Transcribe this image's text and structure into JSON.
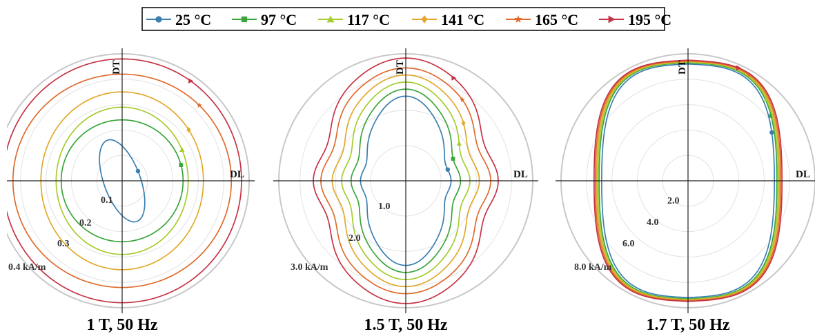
{
  "chart_data": {
    "type": "polar-line",
    "legend": {
      "placement": "top-center",
      "entries": [
        {
          "name": "25 °C",
          "color": "#3b7fb0",
          "marker": "circle"
        },
        {
          "name": "97 °C",
          "color": "#3aa53a",
          "marker": "square"
        },
        {
          "name": "117 °C",
          "color": "#a6cc2e",
          "marker": "triangle-up"
        },
        {
          "name": "141 °C",
          "color": "#e3a82b",
          "marker": "diamond"
        },
        {
          "name": "165 °C",
          "color": "#e06a2c",
          "marker": "star"
        },
        {
          "name": "195 °C",
          "color": "#c63345",
          "marker": "triangle-right"
        }
      ]
    },
    "panels": [
      {
        "title": "1 T, 50 Hz",
        "axis_labels": {
          "vertical": "DT",
          "horizontal": "DL"
        },
        "rmax": 0.5,
        "grid_rings": [
          0.1,
          0.2,
          0.3,
          0.4
        ],
        "tick_labels": [
          {
            "value": 0.1,
            "text": "0.1"
          },
          {
            "value": 0.2,
            "text": "0.2"
          },
          {
            "value": 0.3,
            "text": "0.3"
          },
          {
            "value": 0.4,
            "text": "0.4 kA/m"
          }
        ],
        "series": [
          {
            "a": 0.072,
            "b": 0.17,
            "tilt": 20,
            "shape": 0,
            "marker_angle": 5
          },
          {
            "a": 0.24,
            "b": 0.24,
            "tilt": 0,
            "shape": 0,
            "marker_angle": 15
          },
          {
            "a": 0.26,
            "b": 0.29,
            "tilt": 0,
            "shape": 0,
            "marker_angle": 25
          },
          {
            "a": 0.32,
            "b": 0.35,
            "tilt": 0,
            "shape": 0,
            "marker_angle": 35
          },
          {
            "a": 0.43,
            "b": 0.42,
            "tilt": 0,
            "shape": 0,
            "marker_angle": 45
          },
          {
            "a": 0.47,
            "b": 0.48,
            "tilt": 0,
            "shape": 0,
            "marker_angle": 55
          }
        ]
      },
      {
        "title": "1.5 T, 50 Hz",
        "axis_labels": {
          "vertical": "DT",
          "horizontal": "DL"
        },
        "rmax": 3.6,
        "grid_rings": [
          1.0,
          2.0,
          3.0
        ],
        "tick_labels": [
          {
            "value": 1.0,
            "text": "1.0"
          },
          {
            "value": 2.0,
            "text": "2.0"
          },
          {
            "value": 3.0,
            "text": "3.0 kA/m"
          }
        ],
        "series": [
          {
            "a": 1.2,
            "b": 2.4,
            "tilt": 0,
            "shape": 1,
            "marker_angle": 15
          },
          {
            "a": 1.45,
            "b": 2.6,
            "tilt": 0,
            "shape": 1,
            "marker_angle": 25
          },
          {
            "a": 1.7,
            "b": 2.8,
            "tilt": 0,
            "shape": 1,
            "marker_angle": 35
          },
          {
            "a": 1.95,
            "b": 3.0,
            "tilt": 0,
            "shape": 1,
            "marker_angle": 45
          },
          {
            "a": 2.25,
            "b": 3.2,
            "tilt": 0,
            "shape": 1,
            "marker_angle": 55
          },
          {
            "a": 2.45,
            "b": 3.48,
            "tilt": 0,
            "shape": 1,
            "marker_angle": 65
          }
        ]
      },
      {
        "title": "1.7 T, 50 Hz",
        "axis_labels": {
          "vertical": "DT",
          "horizontal": "DL"
        },
        "rmax": 10.0,
        "grid_rings": [
          2.0,
          4.0,
          6.0,
          8.0
        ],
        "tick_labels": [
          {
            "value": 2.0,
            "text": "2.0"
          },
          {
            "value": 4.0,
            "text": "4.0"
          },
          {
            "value": 6.0,
            "text": "6.0"
          },
          {
            "value": 8.0,
            "text": "8.0 kA/m"
          }
        ],
        "series": [
          {
            "a": 6.8,
            "b": 9.2,
            "tilt": 0,
            "shape": 2,
            "marker_angle": 30
          },
          {
            "a": 7.0,
            "b": 9.3,
            "tilt": 0,
            "shape": 2,
            "marker_angle": 38
          },
          {
            "a": 7.1,
            "b": 9.35,
            "tilt": 0,
            "shape": 2,
            "marker_angle": 46
          },
          {
            "a": 7.2,
            "b": 9.4,
            "tilt": 0,
            "shape": 2,
            "marker_angle": 54
          },
          {
            "a": 7.3,
            "b": 9.45,
            "tilt": 0,
            "shape": 2,
            "marker_angle": 60
          },
          {
            "a": 7.4,
            "b": 9.5,
            "tilt": 0,
            "shape": 2,
            "marker_angle": 66
          }
        ]
      }
    ]
  }
}
